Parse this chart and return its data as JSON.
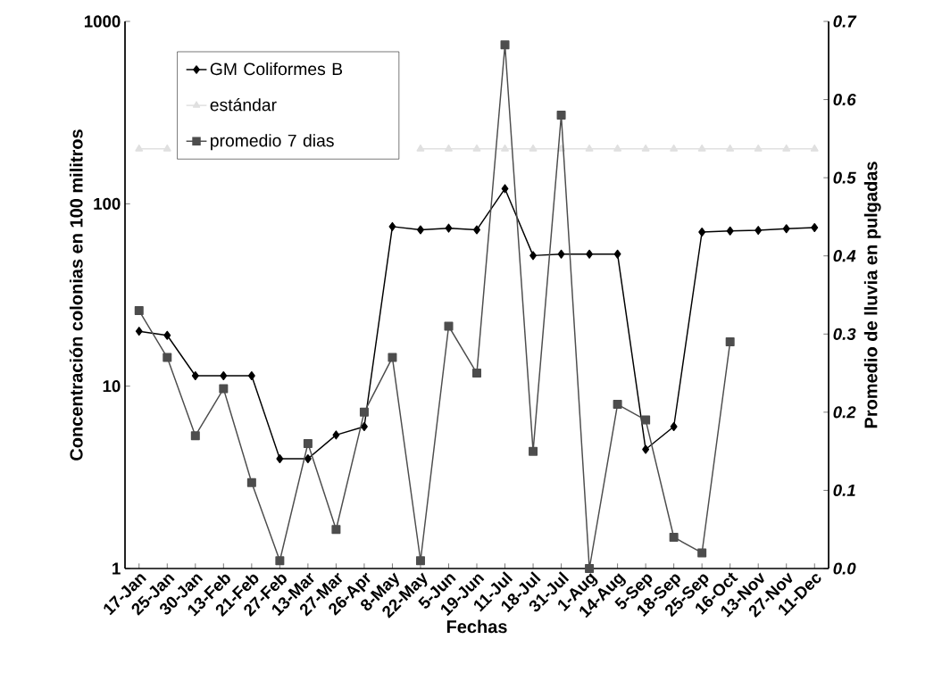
{
  "chart_data": {
    "type": "line",
    "xlabel": "Fechas",
    "ylabel": "Concentración colonias en 100 militros",
    "y2label": "Promedio de lluvia en pulgadas",
    "categories": [
      "17-Jan",
      "25-Jan",
      "30-Jan",
      "13-Feb",
      "21-Feb",
      "27-Feb",
      "13-Mar",
      "27-Mar",
      "26-Apr",
      "8-May",
      "22-May",
      "5-Jun",
      "19-Jun",
      "11-Jul",
      "18-Jul",
      "31-Jul",
      "1-Aug",
      "14-Aug",
      "5-Sep",
      "18-Sep",
      "25-Sep",
      "16-Oct",
      "13-Nov",
      "27-Nov",
      "11-Dec"
    ],
    "log": "y",
    "ylim": [
      1,
      1000
    ],
    "yticks": [
      1,
      10,
      100,
      1000
    ],
    "y2lim": [
      0,
      0.7
    ],
    "y2ticks": [
      {
        "value": 0,
        "label": "0.0"
      },
      0.1,
      0.2,
      0.3,
      0.4,
      0.5,
      0.6,
      0.7
    ],
    "legend": "top left",
    "series": [
      {
        "name": "GM Coliformes B",
        "color": "#000000",
        "marker": "diamond",
        "values": [
          20,
          19,
          11.4,
          11.4,
          11.4,
          4,
          4,
          5.4,
          6,
          75,
          72,
          73.5,
          72,
          121,
          52,
          53,
          53,
          53,
          4.5,
          6,
          70,
          71,
          71.5,
          73,
          74
        ]
      },
      {
        "name": "estándar",
        "color": "#e0e0e0",
        "marker": "triangle",
        "values": [
          200,
          200,
          null,
          null,
          null,
          null,
          null,
          null,
          null,
          null,
          200,
          200,
          200,
          200,
          200,
          200,
          200,
          200,
          200,
          200,
          200,
          200,
          200,
          200,
          200
        ]
      },
      {
        "name": "promedio 7 dias",
        "color": "#4d4d4d",
        "marker": "square",
        "axis": "y2",
        "values": [
          0.33,
          0.27,
          0.17,
          0.23,
          0.11,
          0.01,
          0.16,
          0.05,
          0.2,
          0.27,
          0.01,
          0.31,
          0.25,
          0.67,
          0.15,
          0.58,
          0.0,
          0.21,
          0.19,
          0.04,
          0.02,
          0.29,
          null,
          null,
          null
        ]
      }
    ]
  }
}
